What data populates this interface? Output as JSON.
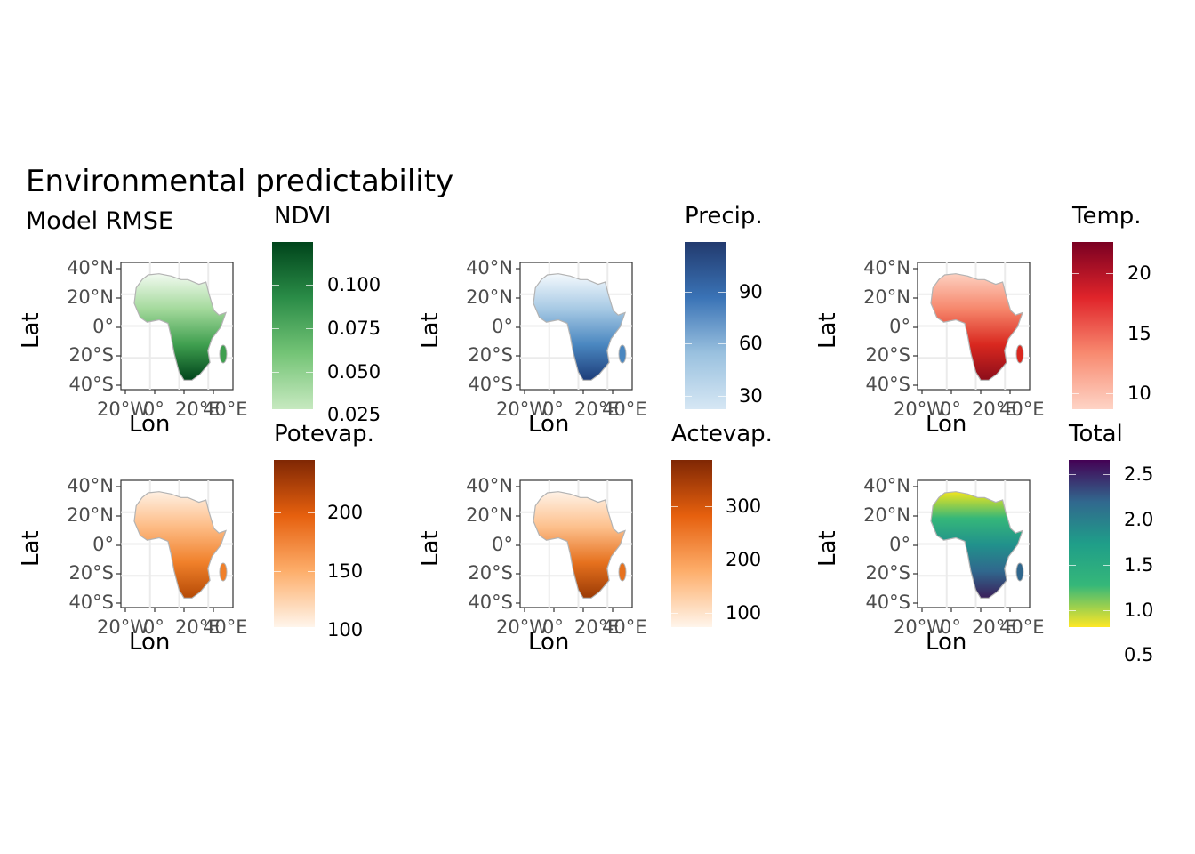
{
  "title": "Environmental predictability",
  "subtitle": "Model RMSE",
  "axes": {
    "ylabel": "Lat",
    "xlabel": "Lon",
    "yticks": [
      "40°N",
      "20°N",
      "0°",
      "20°S",
      "40°S"
    ],
    "xticks": [
      "20°W",
      "0°",
      "20°E",
      "40°E"
    ]
  },
  "panels": [
    {
      "legend_title": "NDVI",
      "labels": [
        "0.100",
        "0.075",
        "0.050",
        "0.025"
      ],
      "colors": [
        "#f2faf0",
        "#a3d99b",
        "#3f9f4f",
        "#00441b"
      ],
      "gradient": [
        "#00441b",
        "#2a8c47",
        "#74c476",
        "#c7e9c0"
      ]
    },
    {
      "legend_title": "Precip.",
      "labels": [
        "90",
        "60",
        "30"
      ],
      "colors": [
        "#f4f9fd",
        "#a6c9e4",
        "#4a87c0",
        "#1d3d7a"
      ],
      "gradient": [
        "#223a6e",
        "#3a73b6",
        "#9ac1df",
        "#d6e7f4"
      ]
    },
    {
      "legend_title": "Temp.",
      "labels": [
        "20",
        "15",
        "10"
      ],
      "colors": [
        "#fdd0c0",
        "#f6866b",
        "#d9281f",
        "#8c0d1a"
      ],
      "gradient": [
        "#7a0022",
        "#e0242a",
        "#f88a70",
        "#fed4c6"
      ]
    },
    {
      "legend_title": "Potevap.",
      "labels": [
        "200",
        "150",
        "100"
      ],
      "colors": [
        "#fff0e2",
        "#fdbb84",
        "#f0802a",
        "#b54a06"
      ],
      "gradient": [
        "#7f2704",
        "#e6600e",
        "#fdae6b",
        "#fff5eb"
      ]
    },
    {
      "legend_title": "Actevap.",
      "labels": [
        "300",
        "200",
        "100"
      ],
      "colors": [
        "#fff2e6",
        "#fdc08c",
        "#e6711e",
        "#9a3a05"
      ],
      "gradient": [
        "#7f2704",
        "#e6600e",
        "#fdae6b",
        "#fff5eb"
      ]
    },
    {
      "legend_title": "Total",
      "labels": [
        "2.5",
        "2.0",
        "1.5",
        "1.0",
        "0.5"
      ],
      "colors": [
        "#f1e51d",
        "#35b779",
        "#21918c",
        "#30678d",
        "#3b1f5a"
      ],
      "gradient": [
        "#440154",
        "#31688e",
        "#1f9e89",
        "#35b779",
        "#fde725"
      ]
    }
  ]
}
